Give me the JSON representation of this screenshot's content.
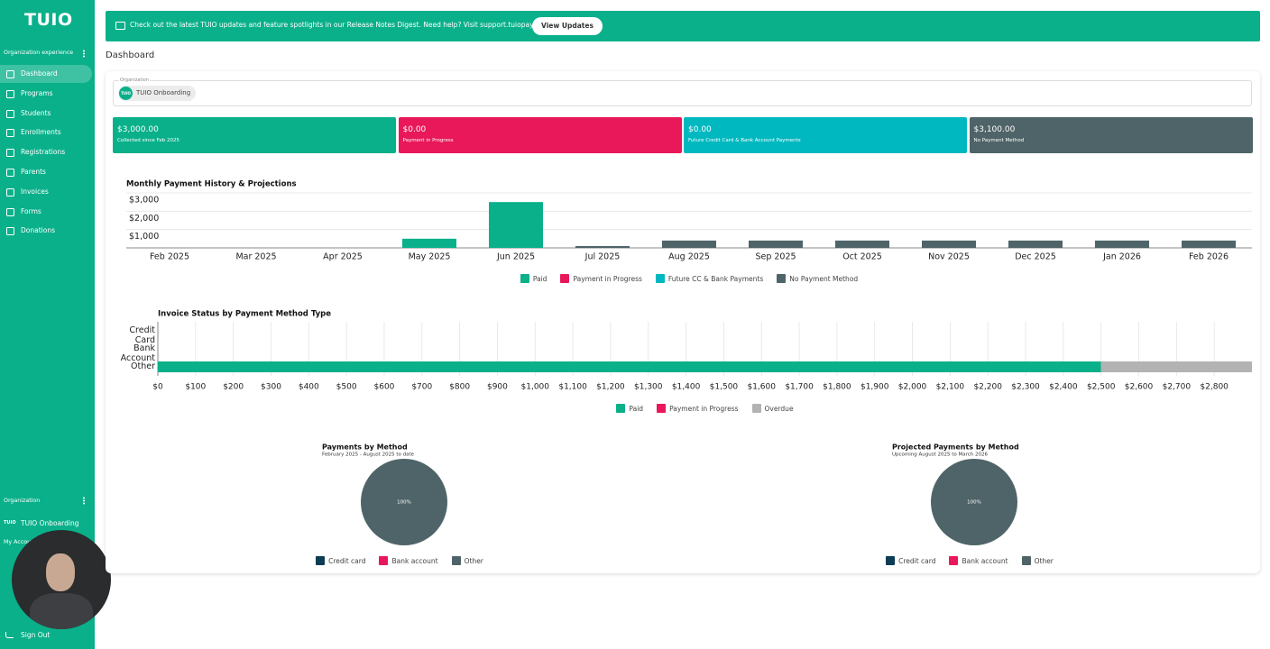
{
  "sidebar": {
    "logo": "TUIO",
    "section_label": "Organization experience",
    "nav": [
      "Dashboard",
      "Programs",
      "Students",
      "Enrollments",
      "Registrations",
      "Parents",
      "Invoices",
      "Forms",
      "Donations"
    ],
    "org_label": "Organization",
    "org_icon": "TUIO",
    "org_name": "TUIO Onboarding",
    "account_label": "My Account",
    "sign_out": "Sign Out"
  },
  "banner": {
    "text": "Check out the latest TUIO updates and feature spotlights in our Release Notes Digest. Need help? Visit support.tuiopay.com",
    "button": "View Updates"
  },
  "page_title": "Dashboard",
  "organization_field": {
    "label": "Organization",
    "avatar": "TUIO",
    "value": "TUIO Onboarding"
  },
  "summary_cards": [
    {
      "amount": "$3,000.00",
      "label": "Collected since Feb 2025",
      "color": "#0ab08a"
    },
    {
      "amount": "$0.00",
      "label": "Payment in Progress",
      "color": "#e8185a"
    },
    {
      "amount": "$0.00",
      "label": "Future Credit Card & Bank Account Payments",
      "color": "#00b8c0"
    },
    {
      "amount": "$3,100.00",
      "label": "No Payment Method",
      "color": "#4f6468"
    }
  ],
  "chart_data": [
    {
      "type": "bar",
      "stacked": true,
      "title": "Monthly Payment History & Projections",
      "categories": [
        "Feb 2025",
        "Mar 2025",
        "Apr 2025",
        "May 2025",
        "Jun 2025",
        "Jul 2025",
        "Aug 2025",
        "Sep 2025",
        "Oct 2025",
        "Nov 2025",
        "Dec 2025",
        "Jan 2026",
        "Feb 2026"
      ],
      "series": [
        {
          "name": "Paid",
          "color": "#0ab08a",
          "values": [
            0,
            0,
            0,
            500,
            2500,
            0,
            0,
            0,
            0,
            0,
            0,
            0,
            0
          ]
        },
        {
          "name": "Payment in Progress",
          "color": "#e8185a",
          "values": [
            0,
            0,
            0,
            0,
            0,
            0,
            0,
            0,
            0,
            0,
            0,
            0,
            0
          ]
        },
        {
          "name": "Future CC & Bank Payments",
          "color": "#00b8c0",
          "values": [
            0,
            0,
            0,
            0,
            0,
            0,
            0,
            0,
            0,
            0,
            0,
            0,
            0
          ]
        },
        {
          "name": "No Payment Method",
          "color": "#4f6468",
          "values": [
            0,
            0,
            0,
            0,
            0,
            100,
            400,
            400,
            400,
            400,
            400,
            400,
            400
          ]
        }
      ],
      "ylim": [
        0,
        3000
      ],
      "yticks": [
        {
          "value": 1000,
          "label": "$1,000"
        },
        {
          "value": 2000,
          "label": "$2,000"
        },
        {
          "value": 3000,
          "label": "$3,000"
        }
      ],
      "grid": true,
      "legend": "bottom"
    },
    {
      "type": "hbar",
      "stacked": true,
      "title": "Invoice Status by Payment Method Type",
      "categories": [
        "Credit Card",
        "Bank Account",
        "Other"
      ],
      "series": [
        {
          "name": "Paid",
          "color": "#0ab08a",
          "values": [
            0,
            0,
            2500
          ]
        },
        {
          "name": "Payment in Progress",
          "color": "#e8185a",
          "values": [
            0,
            0,
            0
          ]
        },
        {
          "name": "Overdue",
          "color": "#b3b3b3",
          "values": [
            0,
            0,
            400
          ]
        }
      ],
      "xlim": [
        0,
        2900
      ],
      "xticks": [
        {
          "value": 0,
          "label": "$0"
        },
        {
          "value": 100,
          "label": "$100"
        },
        {
          "value": 200,
          "label": "$200"
        },
        {
          "value": 300,
          "label": "$300"
        },
        {
          "value": 400,
          "label": "$400"
        },
        {
          "value": 500,
          "label": "$500"
        },
        {
          "value": 600,
          "label": "$600"
        },
        {
          "value": 700,
          "label": "$700"
        },
        {
          "value": 800,
          "label": "$800"
        },
        {
          "value": 900,
          "label": "$900"
        },
        {
          "value": 1000,
          "label": "$1,000"
        },
        {
          "value": 1100,
          "label": "$1,100"
        },
        {
          "value": 1200,
          "label": "$1,200"
        },
        {
          "value": 1300,
          "label": "$1,300"
        },
        {
          "value": 1400,
          "label": "$1,400"
        },
        {
          "value": 1500,
          "label": "$1,500"
        },
        {
          "value": 1600,
          "label": "$1,600"
        },
        {
          "value": 1700,
          "label": "$1,700"
        },
        {
          "value": 1800,
          "label": "$1,800"
        },
        {
          "value": 1900,
          "label": "$1,900"
        },
        {
          "value": 2000,
          "label": "$2,000"
        },
        {
          "value": 2100,
          "label": "$2,100"
        },
        {
          "value": 2200,
          "label": "$2,200"
        },
        {
          "value": 2300,
          "label": "$2,300"
        },
        {
          "value": 2400,
          "label": "$2,400"
        },
        {
          "value": 2500,
          "label": "$2,500"
        },
        {
          "value": 2600,
          "label": "$2,600"
        },
        {
          "value": 2700,
          "label": "$2,700"
        },
        {
          "value": 2800,
          "label": "$2,800"
        }
      ],
      "grid": true,
      "legend": "bottom"
    },
    {
      "type": "pie",
      "title": "Payments by Method",
      "subtitle": "February 2025 - August 2025 to date",
      "categories": [
        "Credit card",
        "Bank account",
        "Other"
      ],
      "colors": [
        "#0d3c55",
        "#e8185a",
        "#4f6468"
      ],
      "values": [
        0,
        0,
        100
      ],
      "value_labels": [
        null,
        null,
        "100%"
      ],
      "legend": "bottom"
    },
    {
      "type": "pie",
      "title": "Projected Payments by Method",
      "subtitle": "Upcoming August 2025 to March 2026",
      "categories": [
        "Credit card",
        "Bank account",
        "Other"
      ],
      "colors": [
        "#0d3c55",
        "#e8185a",
        "#4f6468"
      ],
      "values": [
        0,
        0,
        100
      ],
      "value_labels": [
        null,
        null,
        "100%"
      ],
      "legend": "bottom"
    }
  ]
}
